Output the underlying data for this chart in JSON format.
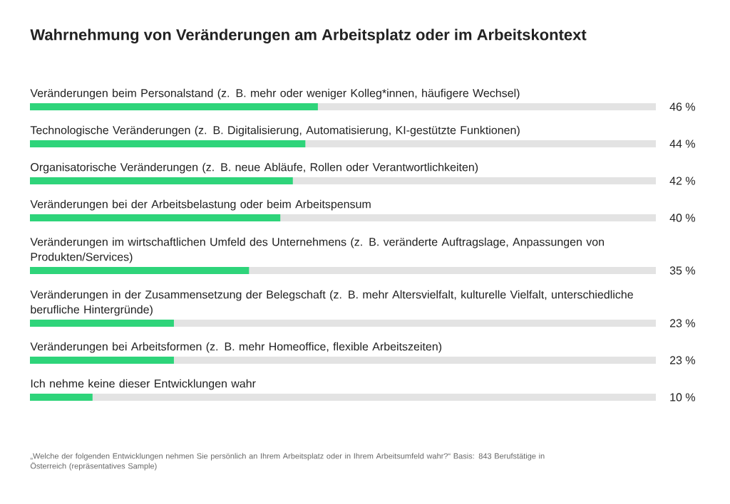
{
  "chart_data": {
    "type": "bar",
    "orientation": "horizontal",
    "title": "Wahrnehmung von Veränderungen am Arbeitsplatz oder im Arbeitskontext",
    "categories": [
      "Veränderungen beim Personalstand (z. B. mehr oder weniger Kolleg*innen, häufigere Wechsel)",
      "Technologische Veränderungen (z. B. Digitalisierung, Automatisierung, KI-gestützte Funktionen)",
      "Organisatorische Veränderungen (z. B. neue Abläufe, Rollen oder Verantwortlichkeiten)",
      "Veränderungen bei der Arbeitsbelastung oder beim Arbeitspensum",
      "Veränderungen im wirtschaftlichen Umfeld des Unternehmens (z. B. veränderte Auftragslage, Anpassungen von Produkten/Services)",
      "Veränderungen in der Zusammensetzung der Belegschaft (z. B. mehr Altersvielfalt, kulturelle Vielfalt, unterschiedliche berufliche Hintergründe)",
      "Veränderungen bei Arbeitsformen (z. B. mehr Homeoffice, flexible Arbeitszeiten)",
      "Ich nehme keine dieser Entwicklungen wahr"
    ],
    "values": [
      46,
      44,
      42,
      40,
      35,
      23,
      23,
      10
    ],
    "value_labels": [
      "46 %",
      "44 %",
      "42 %",
      "40 %",
      "35 %",
      "23 %",
      "23 %",
      "10 %"
    ],
    "color": "#2ed47a",
    "xlim": [
      0,
      100
    ],
    "annotations": [
      "„Welche der folgenden Entwicklungen nehmen Sie persönlich an Ihrem Arbeitsplatz oder in Ihrem Arbeitsumfeld wahr?“ Basis: 843 Berufstätige in Österreich (repräsentatives Sample)"
    ]
  }
}
